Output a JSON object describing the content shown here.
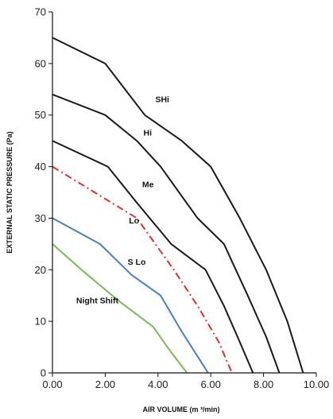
{
  "chart_data": {
    "type": "line",
    "title": "",
    "xlabel": "AIR VOLUME (m ³/min)",
    "ylabel": "EXTERNAL STATIC PRESSURE (Pa)",
    "xlim": [
      0,
      10
    ],
    "ylim": [
      0,
      70
    ],
    "xticks": [
      0,
      2,
      4,
      6,
      8,
      10
    ],
    "xtick_labels": [
      "0.00",
      "2.00",
      "4.00",
      "6.00",
      "8.00",
      "10.00"
    ],
    "yticks": [
      0,
      10,
      20,
      30,
      40,
      50,
      60,
      70
    ],
    "ytick_labels": [
      "0",
      "10",
      "20",
      "30",
      "40",
      "50",
      "60",
      "70"
    ],
    "grid": false,
    "legend": "none",
    "series": [
      {
        "name": "SHi",
        "color": "#1a1a1a",
        "dash": "solid",
        "label_at": [
          3.9,
          52.5
        ],
        "points": [
          [
            0,
            65
          ],
          [
            2.0,
            60
          ],
          [
            3.5,
            50
          ],
          [
            4.9,
            45
          ],
          [
            6.0,
            40
          ],
          [
            7.1,
            30
          ],
          [
            8.1,
            20
          ],
          [
            8.9,
            10
          ],
          [
            9.5,
            0
          ]
        ]
      },
      {
        "name": "Hi",
        "color": "#1a1a1a",
        "dash": "solid",
        "label_at": [
          3.45,
          46.0
        ],
        "points": [
          [
            0,
            54
          ],
          [
            2.0,
            50
          ],
          [
            3.2,
            45
          ],
          [
            4.1,
            40
          ],
          [
            5.5,
            30
          ],
          [
            6.5,
            25
          ],
          [
            7.4,
            15
          ],
          [
            8.1,
            7
          ],
          [
            8.6,
            0
          ]
        ]
      },
      {
        "name": "Me",
        "color": "#1a1a1a",
        "dash": "solid",
        "label_at": [
          3.4,
          36.0
        ],
        "points": [
          [
            0,
            45
          ],
          [
            2.1,
            40
          ],
          [
            3.2,
            33
          ],
          [
            4.5,
            25
          ],
          [
            5.8,
            20
          ],
          [
            6.5,
            13
          ],
          [
            7.1,
            6
          ],
          [
            7.6,
            0
          ]
        ]
      },
      {
        "name": "Lo",
        "color": "#e03030",
        "dash": "dashdot",
        "label_at": [
          2.9,
          29.0
        ],
        "points": [
          [
            0,
            40
          ],
          [
            3.2,
            30
          ],
          [
            4.6,
            20
          ],
          [
            5.5,
            13
          ],
          [
            6.3,
            6
          ],
          [
            6.8,
            0
          ]
        ]
      },
      {
        "name": "S Lo",
        "color": "#4a7fc0",
        "dash": "solid",
        "label_at": [
          2.85,
          21.0
        ],
        "points": [
          [
            0,
            30
          ],
          [
            1.8,
            25
          ],
          [
            3.0,
            19
          ],
          [
            4.1,
            15
          ],
          [
            4.9,
            8
          ],
          [
            5.4,
            4
          ],
          [
            5.9,
            0
          ]
        ]
      },
      {
        "name": "Night Shift",
        "color": "#7ab85a",
        "dash": "solid",
        "label_at": [
          0.9,
          13.5
        ],
        "points": [
          [
            0,
            25
          ],
          [
            1.1,
            20
          ],
          [
            2.5,
            14
          ],
          [
            3.8,
            9
          ],
          [
            4.5,
            4
          ],
          [
            5.1,
            0
          ]
        ]
      }
    ]
  }
}
